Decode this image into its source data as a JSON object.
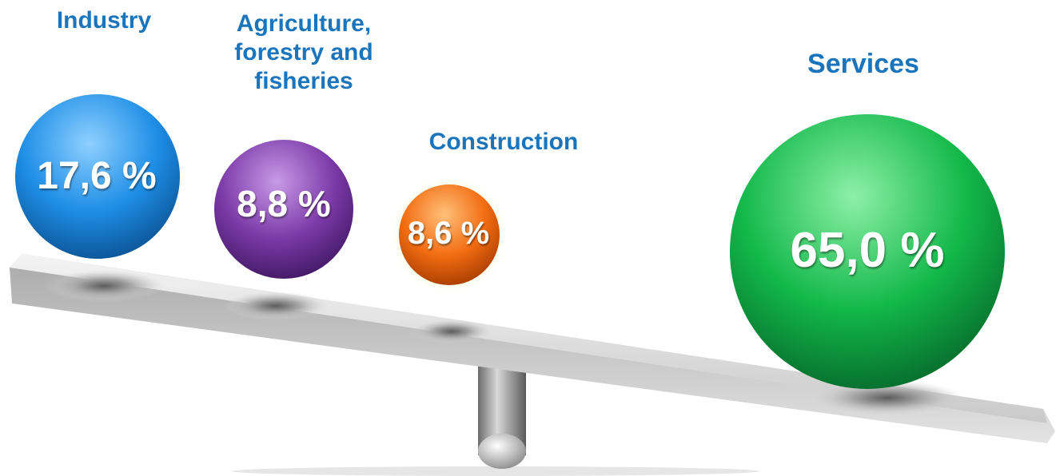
{
  "colors": {
    "label": "#1b75bc",
    "industry": "#1e8ee6",
    "agriculture": "#7b3aa8",
    "construction": "#f26c12",
    "services": "#12b84a",
    "value_text": "#ffffff"
  },
  "chart_data": {
    "type": "bubble-balance",
    "title": "",
    "series": [
      {
        "name": "Industry",
        "value_label": "17,6 %",
        "value": 17.6,
        "color": "#1e8ee6",
        "icon": "sphere-icon"
      },
      {
        "name": "Agriculture, forestry and fisheries",
        "value_label": "8,8 %",
        "value": 8.8,
        "color": "#7b3aa8",
        "icon": "sphere-icon"
      },
      {
        "name": "Construction",
        "value_label": "8,6 %",
        "value": 8.6,
        "color": "#f26c12",
        "icon": "sphere-icon"
      },
      {
        "name": "Services",
        "value_label": "65,0 %",
        "value": 65.0,
        "color": "#12b84a",
        "icon": "sphere-icon"
      }
    ],
    "labels": {
      "industry": "Industry",
      "agriculture": "Agriculture,\nforestry and\nfisheries",
      "construction": "Construction",
      "services": "Services"
    },
    "values": {
      "industry": "17,6 %",
      "agriculture": "8,8 %",
      "construction": "8,6 %",
      "services": "65,0 %"
    },
    "decoration": "seesaw-icon"
  }
}
